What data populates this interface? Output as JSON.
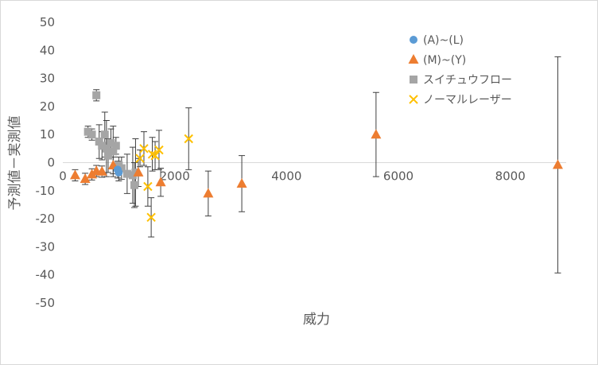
{
  "chart_data": {
    "type": "scatter",
    "xlabel": "威力",
    "ylabel": "予測値－実測値",
    "xlim": [
      0,
      9000
    ],
    "ylim": [
      -50,
      50
    ],
    "x_ticks": [
      0,
      2000,
      4000,
      6000,
      8000
    ],
    "y_ticks": [
      -50,
      -40,
      -30,
      -20,
      -10,
      0,
      10,
      20,
      30,
      40,
      50
    ],
    "grid": "horizontal-none",
    "legend_position": "top-right",
    "series": [
      {
        "name": "(A)~(L)",
        "marker": "circle",
        "color": "#5b9bd5",
        "points": [
          {
            "x": 980,
            "y": -2.5,
            "err": 3
          },
          {
            "x": 1000,
            "y": -3.5,
            "err": 3
          }
        ]
      },
      {
        "name": "(M)~(Y)",
        "marker": "triangle",
        "color": "#ed7d31",
        "points": [
          {
            "x": 220,
            "y": -4.5,
            "err": 2
          },
          {
            "x": 400,
            "y": -5.8,
            "err": 2
          },
          {
            "x": 520,
            "y": -4.2,
            "err": 2
          },
          {
            "x": 600,
            "y": -3.0,
            "err": 2
          },
          {
            "x": 700,
            "y": -3.2,
            "err": 2
          },
          {
            "x": 900,
            "y": -1.0,
            "err": 3
          },
          {
            "x": 1350,
            "y": -3.5,
            "err": 5
          },
          {
            "x": 1750,
            "y": -7.0,
            "err": 5
          },
          {
            "x": 2600,
            "y": -11.0,
            "err": 8
          },
          {
            "x": 3200,
            "y": -7.5,
            "err": 10
          },
          {
            "x": 5600,
            "y": 10.0,
            "err": 15
          },
          {
            "x": 8850,
            "y": -0.8,
            "err": 38.5
          }
        ]
      },
      {
        "name": "スイチュウフロー",
        "marker": "square",
        "color": "#a5a5a5",
        "points": [
          {
            "x": 450,
            "y": 11.0,
            "err": 2
          },
          {
            "x": 520,
            "y": 10.0,
            "err": 2
          },
          {
            "x": 600,
            "y": 24.0,
            "err": 2
          },
          {
            "x": 650,
            "y": 7.5,
            "err": 6
          },
          {
            "x": 700,
            "y": 6.0,
            "err": 5
          },
          {
            "x": 750,
            "y": 10.0,
            "err": 8
          },
          {
            "x": 780,
            "y": 5.0,
            "err": 10
          },
          {
            "x": 810,
            "y": 2.5,
            "err": 6
          },
          {
            "x": 860,
            "y": 7.0,
            "err": 5
          },
          {
            "x": 900,
            "y": 4.0,
            "err": 9
          },
          {
            "x": 950,
            "y": 6.0,
            "err": 3
          },
          {
            "x": 1000,
            "y": -1.0,
            "err": 3
          },
          {
            "x": 1050,
            "y": -2.0,
            "err": 4
          },
          {
            "x": 1150,
            "y": -4.0,
            "err": 7
          },
          {
            "x": 1250,
            "y": -4.5,
            "err": 10
          },
          {
            "x": 1300,
            "y": -3.5,
            "err": 12
          },
          {
            "x": 1280,
            "y": -8.0,
            "err": 8
          }
        ]
      },
      {
        "name": "ノーマルレーザー",
        "marker": "x",
        "color": "#ffc000",
        "points": [
          {
            "x": 1380,
            "y": 1.5,
            "err": 3
          },
          {
            "x": 1450,
            "y": 5.0,
            "err": 6
          },
          {
            "x": 1520,
            "y": -8.5,
            "err": 7
          },
          {
            "x": 1600,
            "y": 3.0,
            "err": 6
          },
          {
            "x": 1650,
            "y": 2.5,
            "err": 5
          },
          {
            "x": 1720,
            "y": 4.5,
            "err": 7
          },
          {
            "x": 1580,
            "y": -19.5,
            "err": 7
          },
          {
            "x": 2250,
            "y": 8.5,
            "err": 11
          }
        ]
      }
    ]
  }
}
